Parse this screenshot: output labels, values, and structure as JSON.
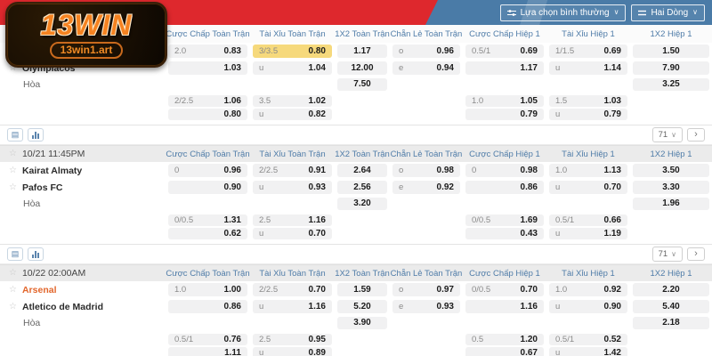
{
  "brand": {
    "logo_text": "13WIN",
    "logo_sub": "13win1.art"
  },
  "colors": {
    "banner_red": "#de282d",
    "banner_blue": "#4a7ba7",
    "brand_orange": "#f58220",
    "highlight_yellow": "#f6d97c",
    "header_blue": "#4f7ca8",
    "team_accent_orange": "#e2662c"
  },
  "toolbar": {
    "filter_label": "Lựa chọn bình thường",
    "lines_label": "Hai Dòng",
    "chevron": "∨"
  },
  "columns": [
    "Cược Chấp Toàn Trận",
    "Tài Xỉu Toàn Trận",
    "1X2 Toàn Trận",
    "Chẵn Lẻ Toàn Trận",
    "Cược Chấp Hiệp 1",
    "Tài Xỉu Hiệp 1",
    "1X2 Hiệp 1"
  ],
  "section_toolbar": {
    "icons": [
      "table-icon",
      "bar-chart-icon"
    ],
    "count_value": "71",
    "next_glyph": "›",
    "star_glyph": "☆"
  },
  "sections": [
    {
      "time": null,
      "rows": [
        {
          "label": "",
          "label_type": "team",
          "star": true,
          "cells": [
            {
              "h": "2.0",
              "o": "0.83"
            },
            {
              "h": "3/3.5",
              "o": "0.80",
              "hl": true
            },
            {
              "v": "1.17"
            },
            {
              "h": "o",
              "o": "0.96"
            },
            {
              "h": "0.5/1",
              "o": "0.69"
            },
            {
              "h": "1/1.5",
              "o": "0.69"
            },
            {
              "v": "1.50"
            }
          ]
        },
        {
          "label": "Olympiacos",
          "label_type": "team",
          "star": true,
          "cells": [
            {
              "h": "",
              "o": "1.03"
            },
            {
              "h": "u",
              "o": "1.04"
            },
            {
              "v": "12.00"
            },
            {
              "h": "e",
              "o": "0.94"
            },
            {
              "h": "",
              "o": "1.17"
            },
            {
              "h": "u",
              "o": "1.14"
            },
            {
              "v": "7.90"
            }
          ]
        },
        {
          "label": "Hòa",
          "label_type": "draw",
          "star": false,
          "cells": [
            null,
            null,
            {
              "v": "7.50"
            },
            null,
            null,
            null,
            {
              "v": "3.25"
            }
          ]
        },
        {
          "label": "",
          "label_type": "sub",
          "star": false,
          "cells": [
            {
              "h": "2/2.5",
              "o": "1.06"
            },
            {
              "h": "3.5",
              "o": "1.02"
            },
            null,
            null,
            {
              "h": "1.0",
              "o": "1.05"
            },
            {
              "h": "1.5",
              "o": "1.03"
            },
            null
          ]
        },
        {
          "label": "",
          "label_type": "sub",
          "star": false,
          "cells": [
            {
              "h": "",
              "o": "0.80"
            },
            {
              "h": "u",
              "o": "0.82"
            },
            null,
            null,
            {
              "h": "",
              "o": "0.79"
            },
            {
              "h": "u",
              "o": "0.79"
            },
            null
          ]
        }
      ]
    },
    {
      "time": "10/21 11:45PM",
      "rows": [
        {
          "label": "Kairat Almaty",
          "label_type": "team",
          "star": true,
          "cells": [
            {
              "h": "0",
              "o": "0.96"
            },
            {
              "h": "2/2.5",
              "o": "0.91"
            },
            {
              "v": "2.64"
            },
            {
              "h": "o",
              "o": "0.98"
            },
            {
              "h": "0",
              "o": "0.98"
            },
            {
              "h": "1.0",
              "o": "1.13"
            },
            {
              "v": "3.50"
            }
          ]
        },
        {
          "label": "Pafos FC",
          "label_type": "team",
          "star": true,
          "cells": [
            {
              "h": "",
              "o": "0.90"
            },
            {
              "h": "u",
              "o": "0.93"
            },
            {
              "v": "2.56"
            },
            {
              "h": "e",
              "o": "0.92"
            },
            {
              "h": "",
              "o": "0.86"
            },
            {
              "h": "u",
              "o": "0.70"
            },
            {
              "v": "3.30"
            }
          ]
        },
        {
          "label": "Hòa",
          "label_type": "draw",
          "star": false,
          "cells": [
            null,
            null,
            {
              "v": "3.20"
            },
            null,
            null,
            null,
            {
              "v": "1.96"
            }
          ]
        },
        {
          "label": "",
          "label_type": "sub",
          "star": false,
          "cells": [
            {
              "h": "0/0.5",
              "o": "1.31"
            },
            {
              "h": "2.5",
              "o": "1.16"
            },
            null,
            null,
            {
              "h": "0/0.5",
              "o": "1.69"
            },
            {
              "h": "0.5/1",
              "o": "0.66"
            },
            null
          ]
        },
        {
          "label": "",
          "label_type": "sub",
          "star": false,
          "cells": [
            {
              "h": "",
              "o": "0.62"
            },
            {
              "h": "u",
              "o": "0.70"
            },
            null,
            null,
            {
              "h": "",
              "o": "0.43"
            },
            {
              "h": "u",
              "o": "1.19"
            },
            null
          ]
        }
      ]
    },
    {
      "time": "10/22 02:00AM",
      "rows": [
        {
          "label": "Arsenal",
          "label_type": "team-accent",
          "star": true,
          "cells": [
            {
              "h": "1.0",
              "o": "1.00"
            },
            {
              "h": "2/2.5",
              "o": "0.70"
            },
            {
              "v": "1.59"
            },
            {
              "h": "o",
              "o": "0.97"
            },
            {
              "h": "0/0.5",
              "o": "0.70"
            },
            {
              "h": "1.0",
              "o": "0.92"
            },
            {
              "v": "2.20"
            }
          ]
        },
        {
          "label": "Atletico de Madrid",
          "label_type": "team",
          "star": true,
          "cells": [
            {
              "h": "",
              "o": "0.86"
            },
            {
              "h": "u",
              "o": "1.16"
            },
            {
              "v": "5.20"
            },
            {
              "h": "e",
              "o": "0.93"
            },
            {
              "h": "",
              "o": "1.16"
            },
            {
              "h": "u",
              "o": "0.90"
            },
            {
              "v": "5.40"
            }
          ]
        },
        {
          "label": "Hòa",
          "label_type": "draw",
          "star": false,
          "cells": [
            null,
            null,
            {
              "v": "3.90"
            },
            null,
            null,
            null,
            {
              "v": "2.18"
            }
          ]
        },
        {
          "label": "",
          "label_type": "sub",
          "star": false,
          "cells": [
            {
              "h": "0.5/1",
              "o": "0.76"
            },
            {
              "h": "2.5",
              "o": "0.95"
            },
            null,
            null,
            {
              "h": "0.5",
              "o": "1.20"
            },
            {
              "h": "0.5/1",
              "o": "0.52"
            },
            null
          ]
        },
        {
          "label": "",
          "label_type": "sub",
          "star": false,
          "cells": [
            {
              "h": "",
              "o": "1.11"
            },
            {
              "h": "u",
              "o": "0.89"
            },
            null,
            null,
            {
              "h": "",
              "o": "0.67"
            },
            {
              "h": "u",
              "o": "1.42"
            },
            null
          ]
        }
      ]
    }
  ]
}
